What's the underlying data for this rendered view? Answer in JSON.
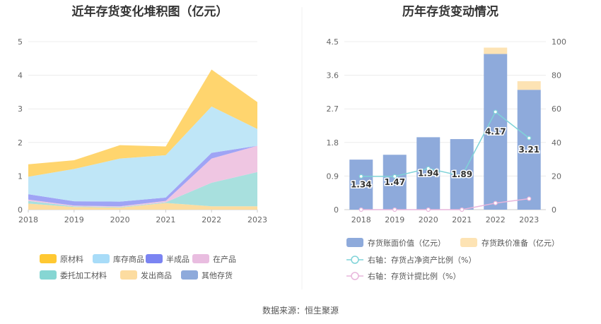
{
  "source_label": "数据来源：恒生聚源",
  "chart_data": [
    {
      "type": "area",
      "title": "近年存货变化堆积图（亿元）",
      "x": [
        "2018",
        "2019",
        "2020",
        "2021",
        "2022",
        "2023"
      ],
      "ylim": [
        0,
        5
      ],
      "yticks": [
        "0",
        "1",
        "2",
        "3",
        "4",
        "5"
      ],
      "stacked": true,
      "grid": true,
      "legend_position": "bottom",
      "series": [
        {
          "name": "其他存货",
          "color": "#8eaadb",
          "values": [
            0.0,
            0.0,
            0.0,
            0.0,
            0.0,
            0.0
          ]
        },
        {
          "name": "发出商品",
          "color": "#fcdca0",
          "values": [
            0.18,
            0.08,
            0.06,
            0.2,
            0.1,
            0.1
          ]
        },
        {
          "name": "委托加工材料",
          "color": "#a8e0de",
          "values": [
            0.08,
            0.02,
            0.02,
            0.02,
            0.7,
            1.02
          ]
        },
        {
          "name": "在产品",
          "color": "#efc6e2",
          "values": [
            0.04,
            0.02,
            0.02,
            0.04,
            0.72,
            0.78
          ]
        },
        {
          "name": "半成品",
          "color": "#9fa4f5",
          "values": [
            0.16,
            0.13,
            0.14,
            0.1,
            0.17,
            0.0
          ]
        },
        {
          "name": "库存商品",
          "color": "#bfe6f7",
          "values": [
            0.52,
            0.96,
            1.28,
            1.26,
            1.38,
            0.5
          ]
        },
        {
          "name": "原材料",
          "color": "#ffd56e",
          "values": [
            0.37,
            0.26,
            0.4,
            0.26,
            1.1,
            0.8
          ]
        }
      ],
      "legend": [
        {
          "name": "原材料",
          "color": "#ffc832"
        },
        {
          "name": "库存商品",
          "color": "#a8dcf8"
        },
        {
          "name": "半成品",
          "color": "#7b84f2"
        },
        {
          "name": "在产品",
          "color": "#e9bde0"
        },
        {
          "name": "委托加工材料",
          "color": "#86d6d3"
        },
        {
          "name": "发出商品",
          "color": "#fcdca0"
        },
        {
          "name": "其他存货",
          "color": "#8eaadb"
        }
      ]
    },
    {
      "type": "bar",
      "title": "历年存货变动情况",
      "categories": [
        "2018",
        "2019",
        "2020",
        "2021",
        "2022",
        "2023"
      ],
      "ylim_left": [
        0,
        4.5
      ],
      "yticks_left": [
        "0",
        "0.9",
        "1.8",
        "2.7",
        "3.6",
        "4.5"
      ],
      "ylim_right": [
        0,
        100
      ],
      "yticks_right": [
        "0",
        "20",
        "40",
        "60",
        "80",
        "100"
      ],
      "stacked": true,
      "grid": true,
      "legend_position": "bottom",
      "series": [
        {
          "name": "存货账面价值（亿元）",
          "color": "#8eaadb",
          "values": [
            1.34,
            1.47,
            1.94,
            1.89,
            4.17,
            3.21
          ],
          "labels": [
            "1.34",
            "1.47",
            "1.94",
            "1.89",
            "4.17",
            "3.21"
          ]
        },
        {
          "name": "存货跌价准备（亿元）",
          "color": "#fde3b4",
          "values": [
            0.0,
            0.0,
            0.0,
            0.0,
            0.17,
            0.23
          ]
        }
      ],
      "line_series": [
        {
          "name": "右轴：存货占净资产比例（%）",
          "color": "#7fd3d8",
          "axis": "right",
          "values": [
            19.8,
            19.8,
            24.5,
            20.0,
            58.2,
            42.6
          ]
        },
        {
          "name": "右轴：存货计提比例（%）",
          "color": "#e8b6dc",
          "axis": "right",
          "values": [
            0.0,
            0.0,
            0.0,
            0.0,
            3.9,
            6.5
          ]
        }
      ]
    }
  ]
}
